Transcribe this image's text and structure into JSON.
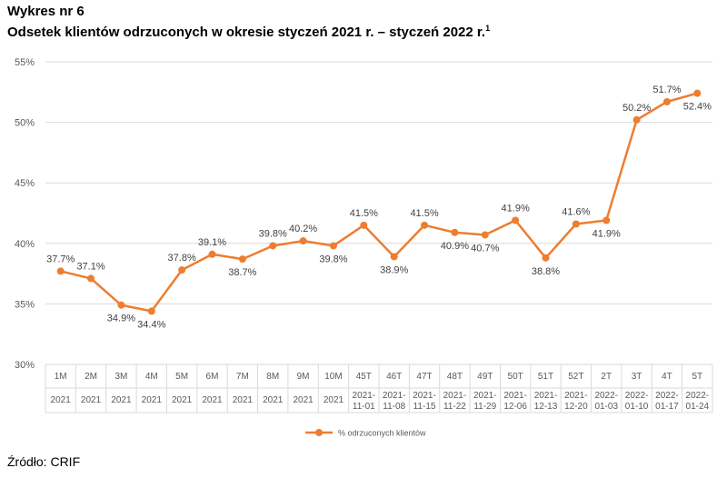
{
  "header": {
    "chart_no": "Wykres nr 6",
    "title": "Odsetek klientów odrzuconych w okresie styczeń 2021 r. – styczeń 2022 r.",
    "footnote_mark": "1"
  },
  "footer": {
    "source": "Źródło: CRIF"
  },
  "colors": {
    "series": "#ED7D31",
    "grid": "#D9D9D9",
    "axis_text": "#595959"
  },
  "chart_data": {
    "type": "line",
    "categories": [
      [
        "1M",
        "2021"
      ],
      [
        "2M",
        "2021"
      ],
      [
        "3M",
        "2021"
      ],
      [
        "4M",
        "2021"
      ],
      [
        "5M",
        "2021"
      ],
      [
        "6M",
        "2021"
      ],
      [
        "7M",
        "2021"
      ],
      [
        "8M",
        "2021"
      ],
      [
        "9M",
        "2021"
      ],
      [
        "10M",
        "2021"
      ],
      [
        "45T",
        "2021-",
        "11-01"
      ],
      [
        "46T",
        "2021-",
        "11-08"
      ],
      [
        "47T",
        "2021-",
        "11-15"
      ],
      [
        "48T",
        "2021-",
        "11-22"
      ],
      [
        "49T",
        "2021-",
        "11-29"
      ],
      [
        "50T",
        "2021-",
        "12-06"
      ],
      [
        "51T",
        "2021-",
        "12-13"
      ],
      [
        "52T",
        "2021-",
        "12-20"
      ],
      [
        "2T",
        "2022-",
        "01-03"
      ],
      [
        "3T",
        "2022-",
        "01-10"
      ],
      [
        "4T",
        "2022-",
        "01-17"
      ],
      [
        "5T",
        "2022-",
        "01-24"
      ]
    ],
    "series": [
      {
        "name": "% odrzuconych klientów",
        "values": [
          37.7,
          37.1,
          34.9,
          34.4,
          37.8,
          39.1,
          38.7,
          39.8,
          40.2,
          39.8,
          41.5,
          38.9,
          41.5,
          40.9,
          40.7,
          41.9,
          38.8,
          41.6,
          41.9,
          50.2,
          51.7,
          52.4
        ],
        "labels": [
          "37.7%",
          "37.1%",
          "34.9%",
          "34.4%",
          "37.8%",
          "39.1%",
          "38.7%",
          "39.8%",
          "40.2%",
          "39.8%",
          "41.5%",
          "38.9%",
          "41.5%",
          "40.9%",
          "40.7%",
          "41.9%",
          "38.8%",
          "41.6%",
          "41.9%",
          "50.2%",
          "51.7%",
          "52.4%"
        ],
        "label_pos": [
          "above",
          "above",
          "below",
          "below",
          "above",
          "above",
          "below",
          "above",
          "above",
          "below",
          "above",
          "below",
          "above",
          "below",
          "below",
          "above",
          "below",
          "above",
          "below",
          "above",
          "above",
          "below"
        ]
      }
    ],
    "yticks": [
      "30%",
      "35%",
      "40%",
      "45%",
      "50%",
      "55%"
    ],
    "ylim": [
      30,
      55
    ],
    "legend": "bottom",
    "grid": true
  }
}
